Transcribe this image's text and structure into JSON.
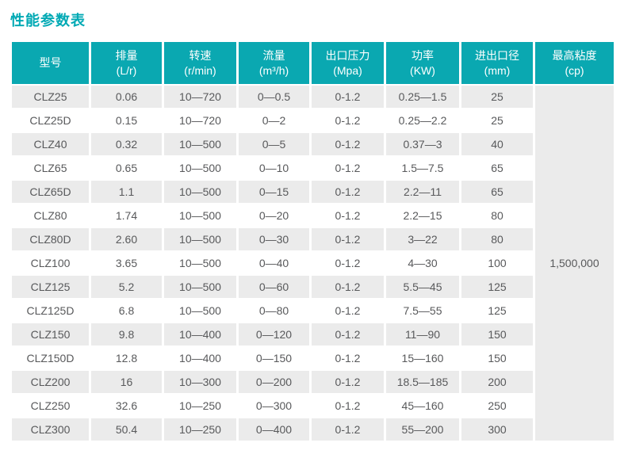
{
  "page": {
    "title": "性能参数表"
  },
  "colors": {
    "header_bg": "#0aa8b1",
    "title": "#00a9b4",
    "row_stripe": "#ebebeb",
    "header_text": "#ffffff",
    "body_text": "#58595b"
  },
  "chart_data": {
    "type": "table",
    "title": "性能参数表",
    "legend_position": "none",
    "grid": "striped-rows",
    "columns": [
      {
        "label": "型号",
        "unit": ""
      },
      {
        "label": "排量",
        "unit": "(L/r)"
      },
      {
        "label": "转速",
        "unit": "(r/min)"
      },
      {
        "label": "流量",
        "unit": "(m³/h)"
      },
      {
        "label": "出口压力",
        "unit": "(Mpa)"
      },
      {
        "label": "功率",
        "unit": "(KW)"
      },
      {
        "label": "进出口径",
        "unit": "(mm)"
      },
      {
        "label": "最高粘度",
        "unit": "(cp)"
      }
    ],
    "rows": [
      [
        "CLZ25",
        "0.06",
        "10—720",
        "0—0.5",
        "0-1.2",
        "0.25—1.5",
        "25"
      ],
      [
        "CLZ25D",
        "0.15",
        "10—720",
        "0—2",
        "0-1.2",
        "0.25—2.2",
        "25"
      ],
      [
        "CLZ40",
        "0.32",
        "10—500",
        "0—5",
        "0-1.2",
        "0.37—3",
        "40"
      ],
      [
        "CLZ65",
        "0.65",
        "10—500",
        "0—10",
        "0-1.2",
        "1.5—7.5",
        "65"
      ],
      [
        "CLZ65D",
        "1.1",
        "10—500",
        "0—15",
        "0-1.2",
        "2.2—11",
        "65"
      ],
      [
        "CLZ80",
        "1.74",
        "10—500",
        "0—20",
        "0-1.2",
        "2.2—15",
        "80"
      ],
      [
        "CLZ80D",
        "2.60",
        "10—500",
        "0—30",
        "0-1.2",
        "3—22",
        "80"
      ],
      [
        "CLZ100",
        "3.65",
        "10—500",
        "0—40",
        "0-1.2",
        "4—30",
        "100"
      ],
      [
        "CLZ125",
        "5.2",
        "10—500",
        "0—60",
        "0-1.2",
        "5.5—45",
        "125"
      ],
      [
        "CLZ125D",
        "6.8",
        "10—500",
        "0—80",
        "0-1.2",
        "7.5—55",
        "125"
      ],
      [
        "CLZ150",
        "9.8",
        "10—400",
        "0—120",
        "0-1.2",
        "11—90",
        "150"
      ],
      [
        "CLZ150D",
        "12.8",
        "10—400",
        "0—150",
        "0-1.2",
        "15—160",
        "150"
      ],
      [
        "CLZ200",
        "16",
        "10—300",
        "0—200",
        "0-1.2",
        "18.5—185",
        "200"
      ],
      [
        "CLZ250",
        "32.6",
        "10—250",
        "0—300",
        "0-1.2",
        "45—160",
        "250"
      ],
      [
        "CLZ300",
        "50.4",
        "10—250",
        "0—400",
        "0-1.2",
        "55—200",
        "300"
      ]
    ],
    "merged_cell": {
      "column": "最高粘度(cp)",
      "value": "1,500,000",
      "rowspan": 15
    }
  }
}
